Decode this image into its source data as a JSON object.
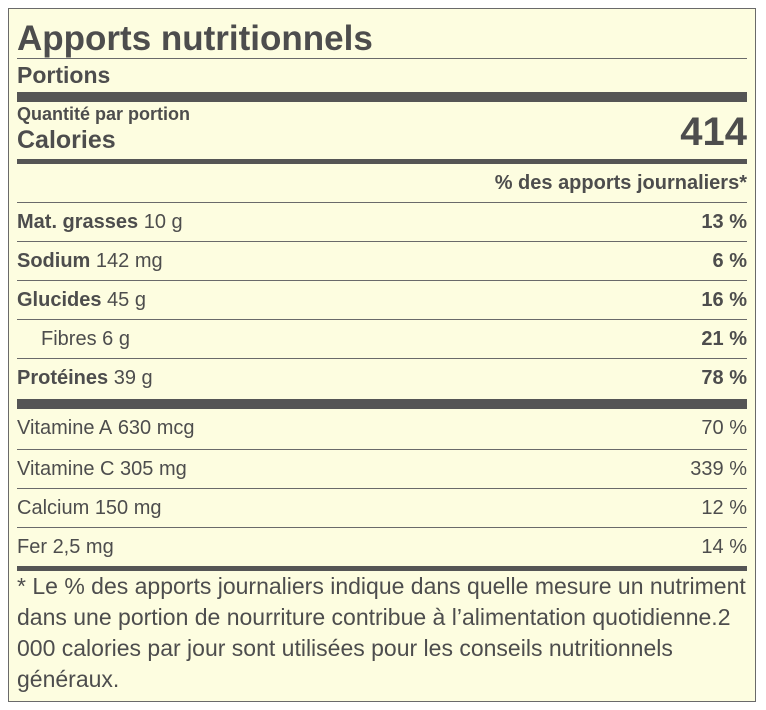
{
  "title": "Apports nutritionnels",
  "servings_label": "Portions",
  "quantity_label": "Quantité par portion",
  "calories_label": "Calories",
  "calories_value": "414",
  "daily_value_header": "% des apports journaliers*",
  "nutrients": [
    {
      "name": "Mat. grasses",
      "amount": "10 g",
      "percent": "13 %"
    },
    {
      "name": "Sodium",
      "amount": "142 mg",
      "percent": "6 %"
    },
    {
      "name": "Glucides",
      "amount": "45 g",
      "percent": "16 %"
    },
    {
      "name": "Fibres",
      "amount": "6 g",
      "percent": "21 %"
    },
    {
      "name": "Protéines",
      "amount": "39 g",
      "percent": "78 %"
    }
  ],
  "vitamins": [
    {
      "name": "Vitamine A",
      "amount": "630 mcg",
      "percent": "70 %"
    },
    {
      "name": "Vitamine C",
      "amount": "305 mg",
      "percent": "339 %"
    },
    {
      "name": "Calcium",
      "amount": "150 mg",
      "percent": "12 %"
    },
    {
      "name": "Fer",
      "amount": "2,5 mg",
      "percent": "14 %"
    }
  ],
  "footnote": "* Le % des apports journaliers indique dans quelle mesure un nutriment dans une portion de nourriture contribue à l’alimentation quotidienne.2 000 calories par jour sont utilisées pour les conseils nutritionnels généraux.",
  "colors": {
    "background": "#fdfde0",
    "text": "#4d4d4d",
    "rule": "#555555"
  }
}
